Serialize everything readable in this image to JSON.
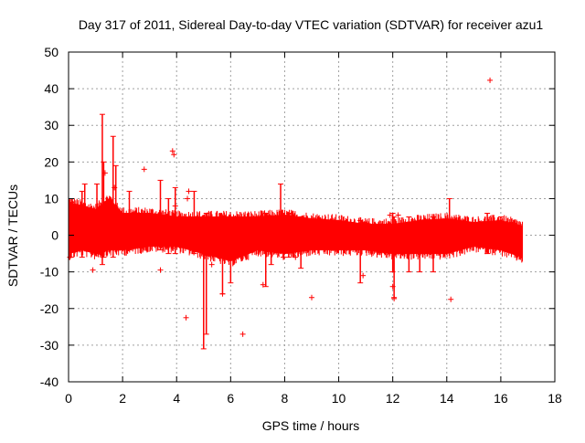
{
  "chart_data": {
    "type": "scatter",
    "title": "Day 317 of 2011, Sidereal Day-to-day VTEC variation (SDTVAR) for receiver azu1",
    "xlabel": "GPS time / hours",
    "ylabel": "SDTVAR / TECUs",
    "xlim": [
      0,
      18
    ],
    "ylim": [
      -40,
      50
    ],
    "xticks": [
      0,
      2,
      4,
      6,
      8,
      10,
      12,
      14,
      16,
      18
    ],
    "yticks": [
      -40,
      -30,
      -20,
      -10,
      0,
      10,
      20,
      30,
      40,
      50
    ],
    "grid": true,
    "marker": "+",
    "series": [
      {
        "name": "SDTVAR azu1",
        "color": "#ff0000",
        "envelope": {
          "x": [
            0.0,
            0.5,
            1.0,
            1.5,
            2.0,
            3.0,
            4.0,
            5.0,
            6.0,
            7.0,
            8.0,
            9.0,
            10.0,
            11.0,
            12.0,
            13.0,
            14.0,
            15.0,
            16.0,
            16.8
          ],
          "upper": [
            9,
            8,
            7,
            10,
            6,
            6,
            5,
            5,
            5,
            5,
            5.5,
            4.5,
            4,
            3,
            3,
            4,
            4.5,
            3.5,
            4,
            2.5
          ],
          "lower": [
            -5,
            -4,
            -5,
            -4,
            -4,
            -3,
            -3,
            -5,
            -7,
            -4,
            -5,
            -4,
            -4,
            -4,
            -5,
            -5,
            -5,
            -3,
            -4,
            -6
          ]
        },
        "spikes": [
          {
            "x": 0.1,
            "top": 9,
            "bottom": -6
          },
          {
            "x": 0.5,
            "top": 12,
            "bottom": -6
          },
          {
            "x": 0.6,
            "top": 14,
            "bottom": -4
          },
          {
            "x": 1.05,
            "top": 14,
            "bottom": -4
          },
          {
            "x": 1.25,
            "top": 33,
            "bottom": -8
          },
          {
            "x": 1.3,
            "top": 20,
            "bottom": -6
          },
          {
            "x": 1.65,
            "top": 27,
            "bottom": -6
          },
          {
            "x": 1.75,
            "top": 19,
            "bottom": -4
          },
          {
            "x": 2.25,
            "top": 12,
            "bottom": -4
          },
          {
            "x": 3.4,
            "top": 15,
            "bottom": -4
          },
          {
            "x": 3.7,
            "top": 10,
            "bottom": -5
          },
          {
            "x": 3.95,
            "top": 13,
            "bottom": -5
          },
          {
            "x": 4.65,
            "top": 12,
            "bottom": -5
          },
          {
            "x": 5.0,
            "top": 5,
            "bottom": -31
          },
          {
            "x": 5.1,
            "top": 6,
            "bottom": -27
          },
          {
            "x": 5.7,
            "top": 5,
            "bottom": -16
          },
          {
            "x": 6.0,
            "top": 5,
            "bottom": -13
          },
          {
            "x": 7.3,
            "top": 6,
            "bottom": -14
          },
          {
            "x": 7.5,
            "top": 5,
            "bottom": -8
          },
          {
            "x": 7.85,
            "top": 14,
            "bottom": -4
          },
          {
            "x": 8.15,
            "top": 6,
            "bottom": -6
          },
          {
            "x": 8.6,
            "top": 5,
            "bottom": -9
          },
          {
            "x": 10.8,
            "top": 4,
            "bottom": -13
          },
          {
            "x": 12.0,
            "top": 6,
            "bottom": -10
          },
          {
            "x": 12.05,
            "top": 5,
            "bottom": -17
          },
          {
            "x": 12.6,
            "top": 5,
            "bottom": -10
          },
          {
            "x": 13.0,
            "top": 4,
            "bottom": -10
          },
          {
            "x": 13.5,
            "top": 5,
            "bottom": -10
          },
          {
            "x": 14.1,
            "top": 10,
            "bottom": -4
          },
          {
            "x": 15.5,
            "top": 6,
            "bottom": -5
          },
          {
            "x": 16.0,
            "top": 5,
            "bottom": -4
          }
        ],
        "points": [
          {
            "x": 15.6,
            "y": 42.3
          },
          {
            "x": 3.85,
            "y": 23
          },
          {
            "x": 3.9,
            "y": 22
          },
          {
            "x": 2.8,
            "y": 18
          },
          {
            "x": 4.45,
            "y": 12
          },
          {
            "x": 4.4,
            "y": 10
          },
          {
            "x": 0.9,
            "y": -9.5
          },
          {
            "x": 3.4,
            "y": -9.5
          },
          {
            "x": 4.35,
            "y": -22.5
          },
          {
            "x": 6.45,
            "y": -27
          },
          {
            "x": 9.0,
            "y": -17
          },
          {
            "x": 14.15,
            "y": -17.5
          },
          {
            "x": 12.05,
            "y": -17.3
          },
          {
            "x": 0.05,
            "y": -6
          },
          {
            "x": 7.95,
            "y": -6
          },
          {
            "x": 8.4,
            "y": -6
          },
          {
            "x": 5.3,
            "y": -8
          },
          {
            "x": 11.9,
            "y": 5.5
          },
          {
            "x": 10.9,
            "y": -11
          },
          {
            "x": 12.0,
            "y": -14
          },
          {
            "x": 7.2,
            "y": -13.5
          },
          {
            "x": 5.7,
            "y": -16
          },
          {
            "x": 1.35,
            "y": 17
          },
          {
            "x": 1.7,
            "y": 13
          },
          {
            "x": 3.95,
            "y": 8
          },
          {
            "x": 12.2,
            "y": 5.5
          }
        ]
      }
    ]
  }
}
